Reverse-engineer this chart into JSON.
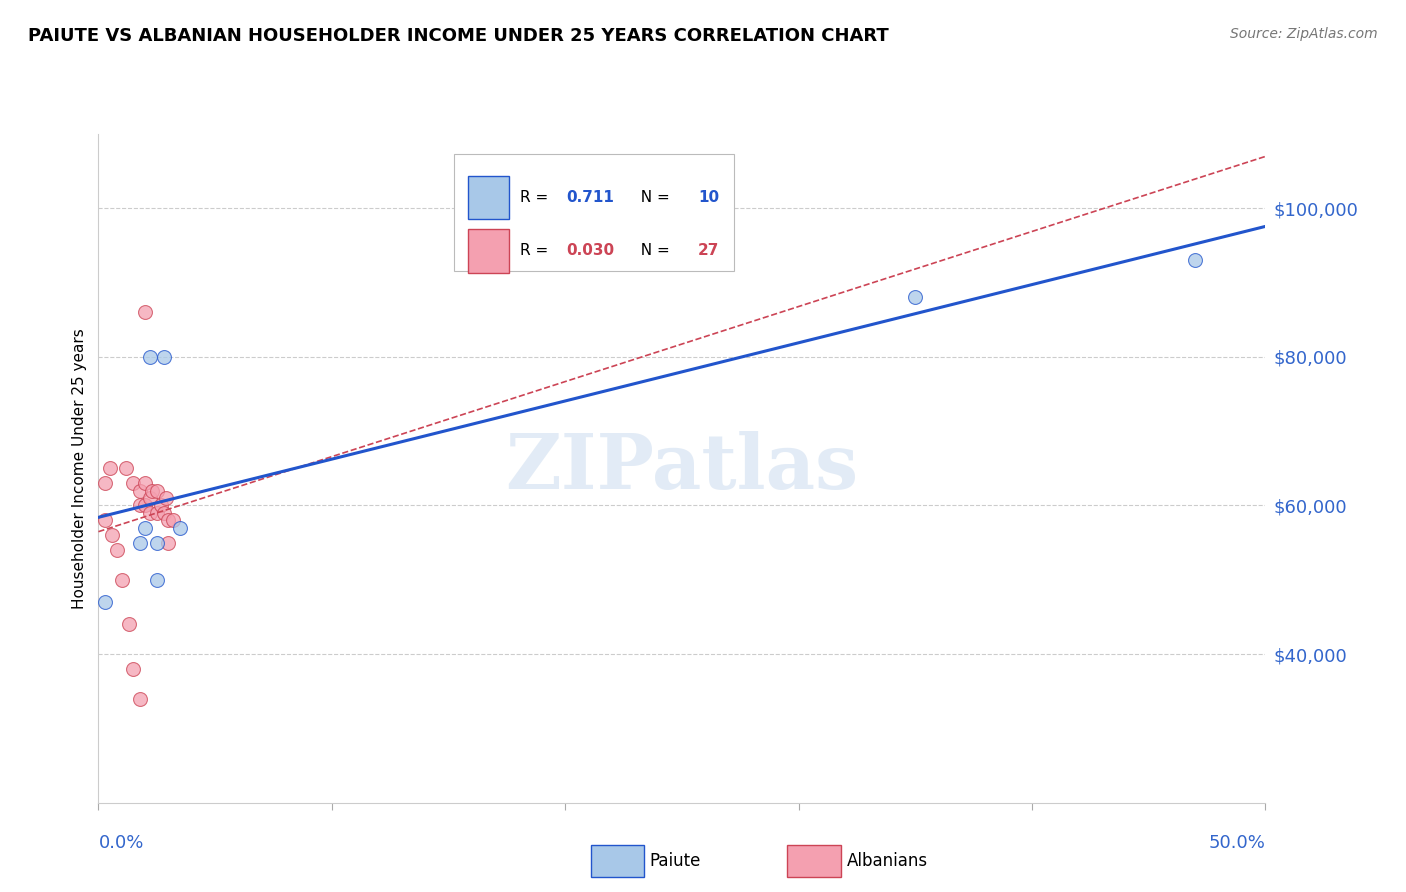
{
  "title": "PAIUTE VS ALBANIAN HOUSEHOLDER INCOME UNDER 25 YEARS CORRELATION CHART",
  "source": "Source: ZipAtlas.com",
  "ylabel": "Householder Income Under 25 years",
  "watermark": "ZIPatlas",
  "legend_paiute_r": "0.711",
  "legend_paiute_n": "10",
  "legend_albanian_r": "0.030",
  "legend_albanian_n": "27",
  "xlim": [
    0.0,
    50.0
  ],
  "ylim": [
    20000,
    110000
  ],
  "paiute_color": "#a8c8e8",
  "albanian_color": "#f4a0b0",
  "paiute_line_color": "#2255cc",
  "albanian_line_color": "#cc4455",
  "paiute_x": [
    0.3,
    2.2,
    2.8,
    2.0,
    1.8,
    2.5,
    2.5,
    3.5,
    35.0,
    47.0
  ],
  "paiute_y": [
    47000,
    80000,
    80000,
    57000,
    55000,
    55000,
    50000,
    57000,
    88000,
    93000
  ],
  "albanian_x": [
    0.3,
    0.5,
    1.2,
    1.5,
    1.8,
    1.8,
    2.0,
    2.0,
    2.2,
    2.2,
    2.3,
    2.5,
    2.5,
    2.7,
    2.8,
    2.9,
    3.0,
    3.0,
    3.2,
    0.3,
    0.6,
    0.8,
    1.0,
    1.3,
    1.5,
    1.8,
    2.0
  ],
  "albanian_y": [
    63000,
    65000,
    65000,
    63000,
    62000,
    60000,
    63000,
    60000,
    61000,
    59000,
    62000,
    62000,
    59000,
    60000,
    59000,
    61000,
    58000,
    55000,
    58000,
    58000,
    56000,
    54000,
    50000,
    44000,
    38000,
    34000,
    86000
  ],
  "background_color": "#ffffff",
  "grid_color": "#cccccc",
  "title_fontsize": 13,
  "axis_label_color": "#3366cc",
  "marker_size": 100,
  "yticks": [
    40000,
    60000,
    80000,
    100000
  ],
  "ytick_labels": [
    "$40,000",
    "$60,000",
    "$80,000",
    "$100,000"
  ]
}
